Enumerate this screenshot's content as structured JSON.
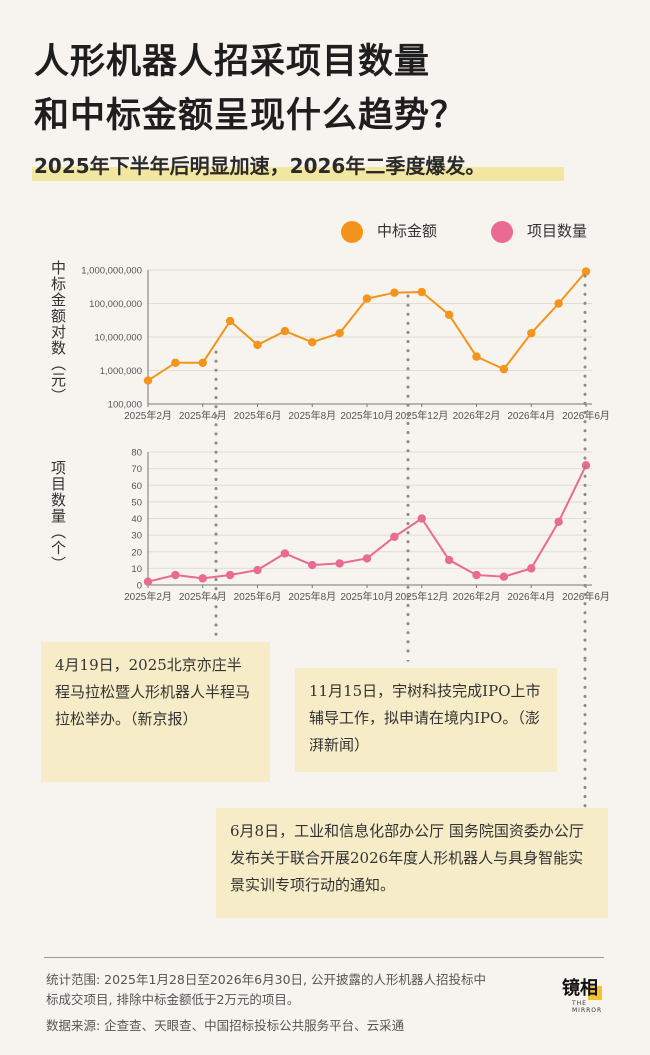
{
  "title_line1": "人形机器人招采项目数量",
  "title_line2": "和中标金额呈现什么趋势？",
  "subtitle": "2025年下半年后明显加速，2026年二季度爆发。",
  "legend": {
    "amount": "中标金额",
    "count": "项目数量",
    "amount_color": "#f3951c",
    "count_color": "#e96a92"
  },
  "chart_data": [
    {
      "type": "line",
      "scale": "log",
      "ylabel": "中标金额对数（元）",
      "yticks": [
        "1,000,000,000",
        "100,000,000",
        "10,000,000",
        "1,000,000",
        "100,000"
      ],
      "ylim": [
        100000,
        1000000000
      ],
      "xticks": [
        "2025年2月",
        "2025年4月",
        "2025年6月",
        "2025年8月",
        "2025年10月",
        "2025年12月",
        "2026年2月",
        "2026年4月",
        "2026年6月"
      ],
      "series": [
        {
          "values": [
            500000,
            1700000,
            1700000,
            30000000,
            5800000,
            15000000,
            7000000,
            13000000,
            140000000,
            210000000,
            220000000,
            46000000,
            2600000,
            1100000,
            13000000,
            100000000,
            900000000
          ]
        }
      ],
      "color": "#f3951c"
    },
    {
      "type": "line",
      "ylabel": "项目数量（个）",
      "yticks": [
        "80",
        "70",
        "60",
        "50",
        "40",
        "30",
        "20",
        "10",
        "0"
      ],
      "ylim": [
        0,
        80
      ],
      "xticks": [
        "2025年2月",
        "2025年4月",
        "2025年6月",
        "2025年8月",
        "2025年10月",
        "2025年12月",
        "2026年2月",
        "2026年4月",
        "2026年6月"
      ],
      "series": [
        {
          "values": [
            2,
            6,
            4,
            6,
            9,
            19,
            12,
            13,
            16,
            29,
            40,
            15,
            6,
            5,
            10,
            38,
            72
          ]
        }
      ],
      "color": "#e96a92"
    }
  ],
  "notes": {
    "n1": "4月19日，2025北京亦庄半程马拉松暨人形机器人半程马拉松举办。（新京报）",
    "n2": "11月15日，宇树科技完成IPO上市辅导工作，拟申请在境内IPO。（澎湃新闻）",
    "n3": "6月8日，工业和信息化部办公厅 国务院国资委办公厅发布关于联合开展2026年度人形机器人与具身智能实景实训专项行动的通知。"
  },
  "footer": {
    "line1": "统计范围: 2025年1月28日至2026年6月30日, 公开披露的人形机器人招投标中",
    "line2": "标成交项目, 排除中标金额低于2万元的项目。",
    "line3": "数据来源: 企查查、天眼查、中国招标投标公共服务平台、云采通"
  },
  "logo": {
    "text": "镜相",
    "sub": "THE MIRROR"
  }
}
